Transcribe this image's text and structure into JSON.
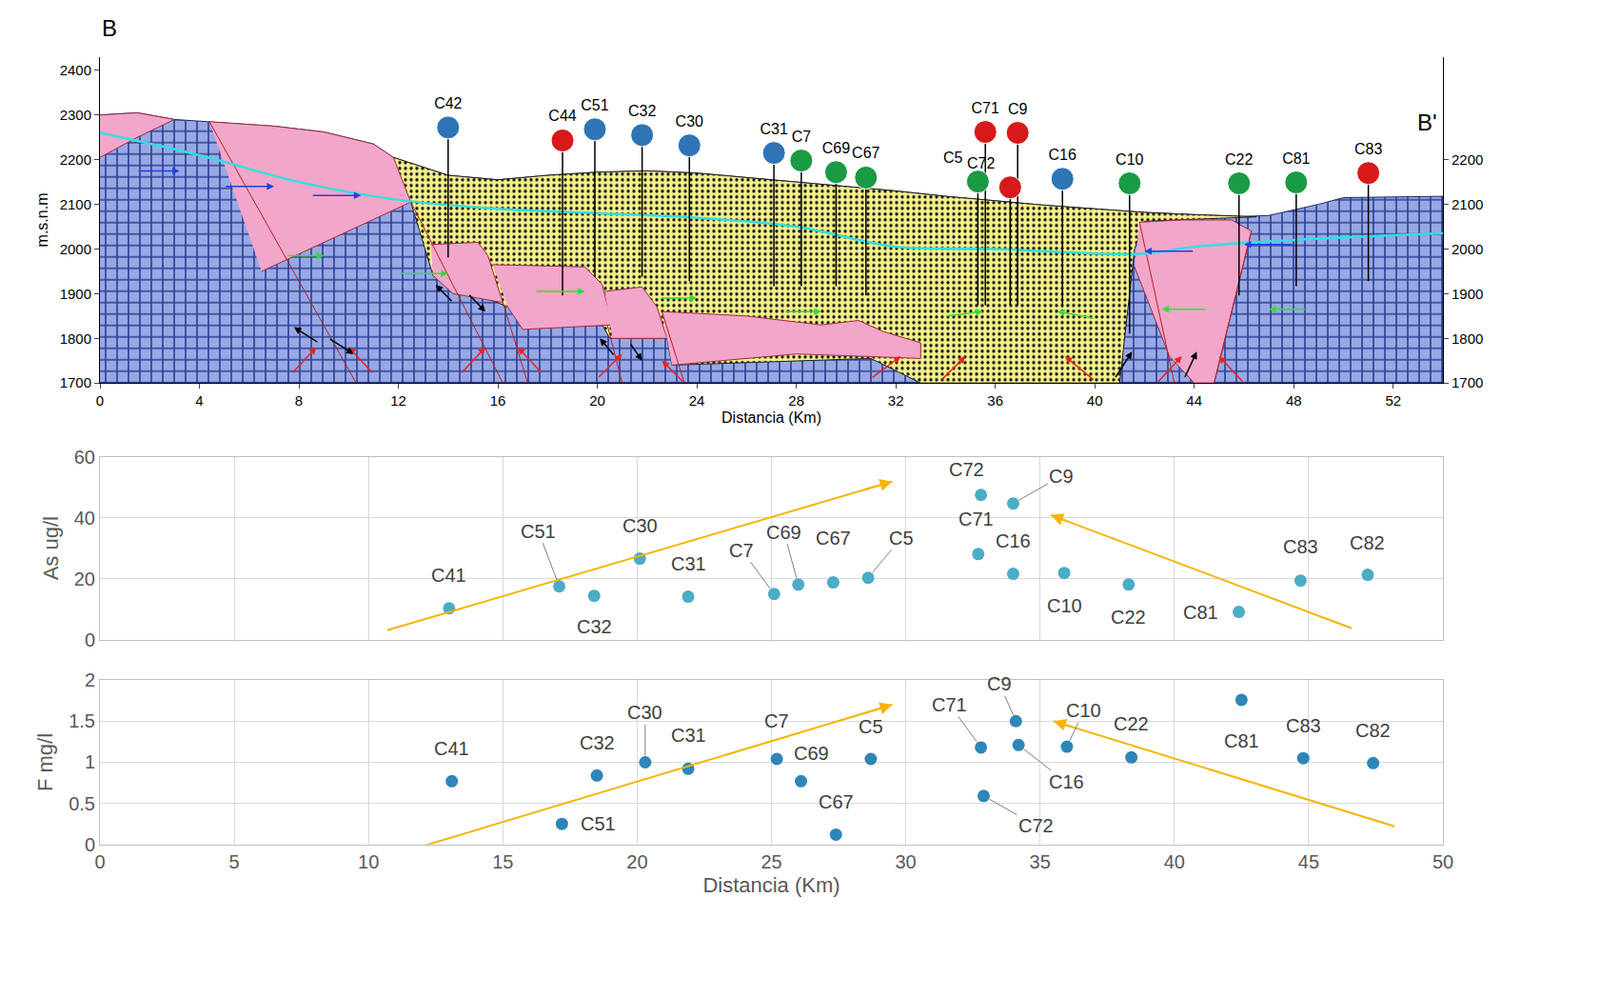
{
  "chart_data": [
    {
      "type": "cross_section",
      "title": "B",
      "end_label": "B'",
      "x_label": "Distancia (Km)",
      "y_label": "m.s.n.m",
      "xlim": [
        0,
        54
      ],
      "xticks": [
        0,
        4,
        8,
        12,
        16,
        20,
        24,
        28,
        32,
        36,
        40,
        44,
        48,
        52
      ],
      "ylim": [
        1700,
        2430
      ],
      "yticks": [
        1700,
        1800,
        1900,
        2000,
        2100,
        2200,
        2300,
        2400
      ],
      "y2lim": [
        1700,
        2430
      ],
      "y2ticks": [
        1700,
        1800,
        1900,
        2000,
        2100,
        2200
      ],
      "grid": false,
      "layers": [
        {
          "color": "#98a8e4",
          "marker": "cross",
          "x": [
            0,
            1.5,
            3,
            4.4,
            7,
            9,
            11,
            11.8,
            14,
            16,
            18,
            20,
            22,
            24,
            26,
            28,
            30,
            32,
            34,
            36,
            38,
            40,
            42,
            44,
            46,
            47,
            49,
            50,
            54,
            54,
            0
          ],
          "y": [
            2300,
            2305,
            2290,
            2285,
            2275,
            2262,
            2235,
            2205,
            2165,
            2155,
            2165,
            2172,
            2175,
            2170,
            2160,
            2150,
            2140,
            2130,
            2118,
            2108,
            2098,
            2090,
            2082,
            2077,
            2073,
            2075,
            2100,
            2115,
            2118,
            1700,
            1700
          ]
        },
        {
          "color": "#f4f08a",
          "marker": "dot",
          "x": [
            11.8,
            14,
            16,
            18,
            20,
            22,
            24,
            26,
            28,
            30,
            32,
            34,
            36,
            38,
            40,
            42,
            44,
            46,
            46.5,
            42,
            41.6,
            41,
            33,
            31,
            23,
            22.8,
            20.5,
            20.2,
            16.4,
            16,
            13.4,
            12.5
          ],
          "y": [
            2205,
            2165,
            2155,
            2165,
            2172,
            2175,
            2170,
            2160,
            2150,
            2140,
            2130,
            2118,
            2108,
            2098,
            2090,
            2082,
            2077,
            2073,
            2072,
            2062,
            2000,
            1700,
            1700,
            1755,
            1740,
            1800,
            1800,
            1830,
            1870,
            1880,
            1940,
            2105
          ]
        },
        {
          "color": "#f2a6c9",
          "x": [
            0,
            1.5,
            3,
            1.5,
            0
          ],
          "y": [
            2300,
            2305,
            2290,
            2250,
            2205
          ]
        },
        {
          "color": "#f2a6c9",
          "x": [
            4.4,
            7,
            9,
            11,
            11.8,
            12.5,
            6.5
          ],
          "y": [
            2285,
            2275,
            2262,
            2235,
            2205,
            2105,
            1950
          ]
        },
        {
          "color": "#f2a6c9",
          "x": [
            13.3,
            15.2,
            15.6,
            16.2,
            14.2,
            13.4
          ],
          "y": [
            2010,
            2015,
            1985,
            1880,
            1900,
            1940
          ]
        },
        {
          "color": "#f2a6c9",
          "x": [
            15.8,
            19.5,
            20.2,
            20.6,
            17,
            16.4
          ],
          "y": [
            1965,
            1960,
            1920,
            1830,
            1820,
            1870
          ]
        },
        {
          "color": "#f2a6c9",
          "x": [
            20.3,
            21.8,
            22.4,
            22.8,
            20.6
          ],
          "y": [
            1905,
            1915,
            1870,
            1800,
            1800
          ]
        },
        {
          "color": "#f2a6c9",
          "x": [
            22.6,
            26,
            29,
            30.5,
            31.5,
            33,
            33,
            28,
            23
          ],
          "y": [
            1860,
            1850,
            1830,
            1840,
            1815,
            1790,
            1755,
            1765,
            1740
          ]
        },
        {
          "color": "#f2a6c9",
          "x": [
            41.8,
            43.5,
            45.5,
            46.3,
            44.8,
            44,
            43,
            42.5,
            41.6
          ],
          "y": [
            2060,
            2065,
            2065,
            2040,
            1700,
            1700,
            1760,
            1830,
            1960
          ]
        }
      ],
      "faults": [
        {
          "color": "#b22222",
          "x": [
            4.4,
            10.3
          ],
          "y": [
            2285,
            1700
          ]
        },
        {
          "color": "#b22222",
          "x": [
            12.5,
            16.2
          ],
          "y": [
            2105,
            1700
          ]
        },
        {
          "color": "#b22222",
          "x": [
            16.2,
            17.2
          ],
          "y": [
            1880,
            1700
          ]
        },
        {
          "color": "#b22222",
          "x": [
            20.4,
            21
          ],
          "y": [
            1830,
            1700
          ]
        },
        {
          "color": "#b22222",
          "x": [
            22.6,
            23.5
          ],
          "y": [
            1860,
            1700
          ]
        },
        {
          "color": "#b22222",
          "x": [
            41.8,
            43.2
          ],
          "y": [
            2060,
            1700
          ]
        },
        {
          "color": "#b22222",
          "x": [
            46.3,
            44.8
          ],
          "y": [
            2040,
            1700
          ]
        }
      ],
      "water_table": {
        "color": "#33dede",
        "x": [
          0,
          4,
          8,
          12,
          16,
          20,
          24,
          28,
          32,
          36,
          40,
          42,
          44,
          48,
          54
        ],
        "y": [
          2260,
          2210,
          2150,
          2110,
          2090,
          2080,
          2070,
          2050,
          2005,
          2000,
          1990,
          1990,
          2005,
          2020,
          2035
        ]
      },
      "flow_arrows": [
        {
          "color": "#2040e0",
          "x": [
            1.5,
            3.2
          ],
          "y": [
            2175,
            2175
          ]
        },
        {
          "color": "#2040e0",
          "x": [
            5,
            7
          ],
          "y": [
            2140,
            2140
          ]
        },
        {
          "color": "#2040e0",
          "x": [
            8.5,
            10.5
          ],
          "y": [
            2120,
            2120
          ]
        },
        {
          "color": "#2040e0",
          "x": [
            44,
            42
          ],
          "y": [
            1995,
            1995
          ]
        },
        {
          "color": "#2040e0",
          "x": [
            48,
            46
          ],
          "y": [
            2010,
            2010
          ]
        },
        {
          "color": "#33dd33",
          "x": [
            7.5,
            9
          ],
          "y": [
            1985,
            1985
          ]
        },
        {
          "color": "#33dd33",
          "x": [
            12,
            14
          ],
          "y": [
            1945,
            1945
          ]
        },
        {
          "color": "#33dd33",
          "x": [
            17.5,
            19.5
          ],
          "y": [
            1905,
            1905
          ]
        },
        {
          "color": "#33dd33",
          "x": [
            22.5,
            24
          ],
          "y": [
            1890,
            1890
          ]
        },
        {
          "color": "#33dd33",
          "x": [
            27.5,
            29
          ],
          "y": [
            1860,
            1860
          ]
        },
        {
          "color": "#33dd33",
          "x": [
            34,
            35.5
          ],
          "y": [
            1850,
            1860
          ]
        },
        {
          "color": "#33dd33",
          "x": [
            40,
            38.5
          ],
          "y": [
            1845,
            1860
          ]
        },
        {
          "color": "#33dd33",
          "x": [
            44.5,
            42.7
          ],
          "y": [
            1865,
            1865
          ]
        },
        {
          "color": "#33dd33",
          "x": [
            48.5,
            47
          ],
          "y": [
            1865,
            1865
          ]
        },
        {
          "color": "#ee2222",
          "x": [
            7.7,
            8.7
          ],
          "y": [
            1720,
            1780
          ]
        },
        {
          "color": "#ee2222",
          "x": [
            11,
            10
          ],
          "y": [
            1720,
            1780
          ]
        },
        {
          "color": "#ee2222",
          "x": [
            14.5,
            15.5
          ],
          "y": [
            1720,
            1780
          ]
        },
        {
          "color": "#ee2222",
          "x": [
            17.8,
            16.8
          ],
          "y": [
            1720,
            1780
          ]
        },
        {
          "color": "#ee2222",
          "x": [
            20,
            21
          ],
          "y": [
            1710,
            1765
          ]
        },
        {
          "color": "#ee2222",
          "x": [
            23.5,
            22.6
          ],
          "y": [
            1700,
            1750
          ]
        },
        {
          "color": "#ee2222",
          "x": [
            31,
            32.2
          ],
          "y": [
            1710,
            1760
          ]
        },
        {
          "color": "#ee2222",
          "x": [
            33.8,
            34.8
          ],
          "y": [
            1705,
            1760
          ]
        },
        {
          "color": "#ee2222",
          "x": [
            40,
            38.8
          ],
          "y": [
            1705,
            1760
          ]
        },
        {
          "color": "#ee2222",
          "x": [
            42.5,
            43.5
          ],
          "y": [
            1700,
            1760
          ]
        },
        {
          "color": "#ee2222",
          "x": [
            46,
            45
          ],
          "y": [
            1700,
            1760
          ]
        },
        {
          "color": "#000000",
          "x": [
            8.8,
            7.8
          ],
          "y": [
            1790,
            1825
          ]
        },
        {
          "color": "#000000",
          "x": [
            9.2,
            10.2
          ],
          "y": [
            1800,
            1765
          ]
        },
        {
          "color": "#000000",
          "x": [
            14.2,
            13.5
          ],
          "y": [
            1880,
            1920
          ]
        },
        {
          "color": "#000000",
          "x": [
            14.8,
            15.5
          ],
          "y": [
            1900,
            1860
          ]
        },
        {
          "color": "#000000",
          "x": [
            20.7,
            20.1
          ],
          "y": [
            1760,
            1800
          ]
        },
        {
          "color": "#000000",
          "x": [
            21.3,
            21.8
          ],
          "y": [
            1790,
            1750
          ]
        },
        {
          "color": "#000000",
          "x": [
            40.8,
            41.5
          ],
          "y": [
            1710,
            1770
          ]
        },
        {
          "color": "#000000",
          "x": [
            43.6,
            44.1
          ],
          "y": [
            1710,
            1770
          ]
        }
      ],
      "wells": [
        {
          "name": "C42",
          "x": 14.0,
          "top": 2272,
          "bottom": 1981,
          "color": "#2f74b5"
        },
        {
          "name": "C44",
          "x": 18.6,
          "top": 2243,
          "bottom": 1896,
          "color": "#d7191c"
        },
        {
          "name": "C51",
          "x": 19.9,
          "top": 2268,
          "bottom": 1938,
          "color": "#2f74b5"
        },
        {
          "name": "C32",
          "x": 21.8,
          "top": 2255,
          "bottom": 1938,
          "color": "#2f74b5"
        },
        {
          "name": "C30",
          "x": 23.7,
          "top": 2232,
          "bottom": 1928,
          "color": "#2f74b5"
        },
        {
          "name": "C31",
          "x": 27.1,
          "top": 2215,
          "bottom": 1917,
          "color": "#2f74b5"
        },
        {
          "name": "C7",
          "x": 28.2,
          "top": 2198,
          "bottom": 1917,
          "color": "#1a9a45"
        },
        {
          "name": "C69",
          "x": 29.6,
          "top": 2172,
          "bottom": 1917,
          "color": "#1a9a45"
        },
        {
          "name": "C67",
          "x": 30.8,
          "top": 2160,
          "bottom": 1896,
          "color": "#1a9a45"
        },
        {
          "name": "C5",
          "x": 35.3,
          "top": 2151,
          "bottom": 1874,
          "color": "#1a9a45"
        },
        {
          "name": "C71",
          "x": 35.6,
          "top": 2262,
          "bottom": 1874,
          "color": "#d7191c"
        },
        {
          "name": "C72",
          "x": 36.6,
          "top": 2138,
          "bottom": 1874,
          "color": "#d7191c"
        },
        {
          "name": "C9",
          "x": 36.9,
          "top": 2260,
          "bottom": 1874,
          "color": "#d7191c"
        },
        {
          "name": "C16",
          "x": 38.7,
          "top": 2157,
          "bottom": 1870,
          "color": "#2f74b5"
        },
        {
          "name": "C10",
          "x": 41.4,
          "top": 2147,
          "bottom": 1811,
          "color": "#1a9a45"
        },
        {
          "name": "C22",
          "x": 45.8,
          "top": 2147,
          "bottom": 1896,
          "color": "#1a9a45"
        },
        {
          "name": "C81",
          "x": 48.1,
          "top": 2149,
          "bottom": 1917,
          "color": "#1a9a45"
        },
        {
          "name": "C83",
          "x": 51.0,
          "top": 2170,
          "bottom": 1928,
          "color": "#d7191c"
        }
      ]
    },
    {
      "type": "scatter",
      "y_label": "As ug/l",
      "xlim": [
        0,
        50
      ],
      "xticks": [
        0,
        5,
        10,
        15,
        20,
        25,
        30,
        35,
        40,
        45,
        50
      ],
      "ylim": [
        0,
        60
      ],
      "yticks": [
        0,
        20,
        40,
        60
      ],
      "grid": true,
      "tick_labels": "y",
      "color": "#4bacc6",
      "labels": [
        "C41",
        "C51",
        "C32",
        "C30",
        "C31",
        "C7",
        "C69",
        "C67",
        "C5",
        "C72",
        "C71",
        "C9",
        "C16",
        "C10",
        "C22",
        "C81",
        "C83",
        "C82"
      ],
      "x": [
        13.0,
        17.1,
        18.4,
        20.1,
        21.9,
        25.1,
        26.0,
        27.3,
        28.6,
        32.8,
        32.7,
        34.0,
        34.0,
        35.9,
        38.3,
        42.4,
        44.7,
        47.2
      ],
      "values": [
        10.3,
        17.5,
        14.4,
        26.6,
        14.1,
        15.0,
        18.1,
        18.8,
        20.3,
        47.5,
        28.1,
        44.7,
        21.6,
        21.9,
        18.1,
        9.1,
        19.4,
        21.3
      ],
      "trend_arrows": [
        {
          "color": "#f5b400",
          "x": [
            10.7,
            29.5
          ],
          "y": [
            3.1,
            51.9
          ]
        },
        {
          "color": "#f5b400",
          "x": [
            46.6,
            35.4
          ],
          "y": [
            3.75,
            40.9
          ]
        }
      ]
    },
    {
      "type": "scatter",
      "x_label": "Distancia (Km)",
      "y_label": "F mg/l",
      "xlim": [
        0,
        50
      ],
      "xticks": [
        0,
        5,
        10,
        15,
        20,
        25,
        30,
        35,
        40,
        45,
        50
      ],
      "ylim": [
        0,
        2
      ],
      "yticks": [
        0,
        0.5,
        1,
        1.5,
        2
      ],
      "grid": true,
      "color": "#2e86b8",
      "labels": [
        "C41",
        "C51",
        "C32",
        "C30",
        "C31",
        "C7",
        "C69",
        "C67",
        "C5",
        "C72",
        "C71",
        "C9",
        "C16",
        "C10",
        "C22",
        "C81",
        "C83",
        "C82"
      ],
      "x": [
        13.1,
        17.2,
        18.5,
        20.3,
        21.9,
        25.2,
        26.1,
        27.4,
        28.7,
        32.9,
        32.8,
        34.1,
        34.2,
        36.0,
        38.4,
        42.5,
        44.8,
        47.4
      ],
      "values": [
        0.77,
        0.25,
        0.84,
        1.0,
        0.92,
        1.04,
        0.77,
        0.12,
        1.04,
        0.59,
        1.18,
        1.5,
        1.21,
        1.19,
        1.06,
        1.76,
        1.05,
        0.99
      ],
      "trend_arrows": [
        {
          "color": "#f5b400",
          "x": [
            10.7,
            29.5
          ],
          "y": [
            -0.15,
            1.7
          ]
        },
        {
          "color": "#f5b400",
          "x": [
            48.2,
            35.5
          ],
          "y": [
            0.22,
            1.5
          ]
        }
      ]
    }
  ]
}
